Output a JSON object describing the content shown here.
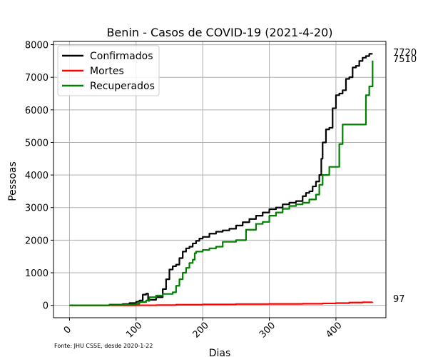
{
  "chart_data": {
    "type": "line",
    "title": "Benin - Casos de COVID-19 (2021-4-20)",
    "xlabel": "Dias",
    "ylabel": "Pessoas",
    "xlim": [
      -24,
      475
    ],
    "ylim": [
      -380,
      8100
    ],
    "xticks": [
      0,
      100,
      200,
      300,
      400
    ],
    "yticks": [
      0,
      1000,
      2000,
      3000,
      4000,
      5000,
      6000,
      7000,
      8000
    ],
    "grid": true,
    "legend_position": "top-left",
    "source_note": "Fonte: JHU CSSE, desde 2020-1-22",
    "end_labels": [
      "7720",
      "7510",
      "97"
    ],
    "series": [
      {
        "name": "Confirmados",
        "color": "#000000",
        "x": [
          0,
          40,
          60,
          80,
          90,
          100,
          105,
          110,
          115,
          118,
          120,
          130,
          140,
          145,
          150,
          155,
          160,
          165,
          170,
          175,
          180,
          185,
          190,
          195,
          200,
          210,
          220,
          230,
          240,
          250,
          260,
          270,
          280,
          290,
          300,
          310,
          320,
          330,
          340,
          350,
          355,
          360,
          365,
          370,
          375,
          378,
          380,
          385,
          390,
          395,
          400,
          405,
          410,
          415,
          420,
          425,
          430,
          435,
          440,
          445,
          450,
          455
        ],
        "y": [
          0,
          0,
          20,
          40,
          70,
          110,
          150,
          330,
          360,
          140,
          170,
          250,
          500,
          800,
          1100,
          1200,
          1250,
          1450,
          1650,
          1750,
          1800,
          1900,
          1980,
          2050,
          2100,
          2200,
          2260,
          2300,
          2350,
          2450,
          2550,
          2650,
          2750,
          2850,
          2950,
          3000,
          3100,
          3150,
          3200,
          3350,
          3450,
          3500,
          3650,
          3800,
          4000,
          4500,
          5000,
          5400,
          5450,
          6050,
          6450,
          6500,
          6600,
          6950,
          7000,
          7300,
          7350,
          7500,
          7600,
          7650,
          7720,
          7720
        ]
      },
      {
        "name": "Mortes",
        "color": "#ff0000",
        "x": [
          0,
          60,
          100,
          130,
          160,
          200,
          250,
          300,
          350,
          380,
          400,
          420,
          440,
          455
        ],
        "y": [
          0,
          0,
          2,
          8,
          20,
          30,
          40,
          45,
          50,
          60,
          70,
          85,
          95,
          97
        ]
      },
      {
        "name": "Recuperados",
        "color": "#008000",
        "x": [
          0,
          40,
          60,
          80,
          100,
          105,
          115,
          120,
          130,
          140,
          155,
          160,
          165,
          170,
          175,
          180,
          185,
          188,
          190,
          200,
          210,
          220,
          230,
          250,
          265,
          270,
          280,
          290,
          300,
          310,
          320,
          330,
          340,
          350,
          360,
          370,
          375,
          380,
          390,
          400,
          405,
          410,
          430,
          445,
          450,
          455
        ],
        "y": [
          0,
          0,
          10,
          20,
          50,
          100,
          150,
          250,
          300,
          350,
          400,
          600,
          800,
          1000,
          1150,
          1300,
          1400,
          1600,
          1650,
          1700,
          1750,
          1800,
          1950,
          2000,
          2320,
          2320,
          2500,
          2560,
          2750,
          2850,
          2960,
          3050,
          3100,
          3150,
          3250,
          3400,
          3700,
          4000,
          4250,
          4250,
          4950,
          5550,
          5550,
          6450,
          6720,
          7510
        ]
      }
    ]
  }
}
